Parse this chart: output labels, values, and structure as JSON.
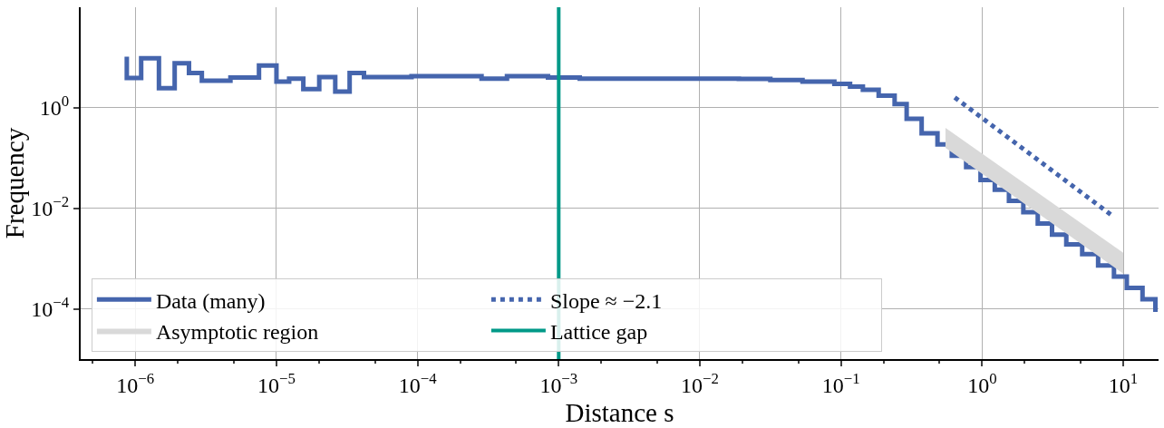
{
  "chart_data": {
    "type": "line",
    "xlabel": "Distance s",
    "ylabel": "Frequency",
    "log": "xy",
    "grid": true,
    "legend": "bottom left",
    "xlim": [
      4.1e-07,
      17.8
    ],
    "ylim": [
      1e-05,
      100
    ],
    "xticks": [
      {
        "value": 1e-06,
        "label": "10$^{−6}$"
      },
      {
        "value": 1e-05,
        "label": "10$^{−5}$"
      },
      {
        "value": 0.0001,
        "label": "10$^{−4}$"
      },
      {
        "value": 0.001,
        "label": "10$^{−3}$"
      },
      {
        "value": 0.01,
        "label": "10$^{−2}$"
      },
      {
        "value": 0.1,
        "label": "10$^{−1}$"
      },
      {
        "value": 1,
        "label": "10$^{0}$"
      },
      {
        "value": 10,
        "label": "10$^{1}$"
      }
    ],
    "yticks": [
      {
        "value": 0.0001,
        "label": "10$^{−4}$"
      },
      {
        "value": 0.01,
        "label": "10$^{−2}$"
      },
      {
        "value": 1,
        "label": "10$^{0}$"
      }
    ],
    "series": [
      {
        "name": "Data (many)",
        "type": "step",
        "color": "#4565ad",
        "x": [
          8.7e-07,
          8.7e-07,
          1.1e-06,
          1.47e-06,
          1.9e-06,
          2.4e-06,
          2.96e-06,
          4.72e-06,
          7.52e-06,
          1e-05,
          1.23e-05,
          1.55e-05,
          2.01e-05,
          2.61e-05,
          3.3e-05,
          4.17e-05,
          9.06e-05,
          0.000284,
          0.00043,
          0.00084,
          0.00141,
          0.0189,
          0.0316,
          0.0534,
          0.0898,
          0.116,
          0.143,
          0.185,
          0.24,
          0.292,
          0.373,
          0.483,
          0.61,
          0.771,
          0.975,
          1.23,
          1.55,
          1.96,
          2.48,
          3.13,
          3.95,
          5.12,
          6.64,
          8.6,
          10.6,
          13.7,
          16.9
        ],
        "values": [
          10.4,
          3.9,
          9.7,
          2.45,
          7.7,
          4.9,
          3.45,
          4.0,
          6.9,
          3.3,
          3.8,
          2.35,
          4.1,
          2.1,
          4.9,
          4.1,
          4.25,
          3.8,
          4.25,
          4.0,
          3.78,
          3.75,
          3.55,
          3.3,
          3.0,
          2.65,
          2.29,
          1.75,
          1.18,
          0.606,
          0.312,
          0.186,
          0.111,
          0.0662,
          0.0366,
          0.0235,
          0.0141,
          0.00838,
          0.005,
          0.00299,
          0.00192,
          0.00123,
          0.00073,
          0.00044,
          0.00026,
          0.000155,
          8.7e-05
        ]
      },
      {
        "name": "Slope ≈ −2.1",
        "line_style": "dotted",
        "color": "#4565ad",
        "x": [
          0.64,
          8.6
        ],
        "values": [
          1.6,
          0.0067
        ]
      },
      {
        "name": "Asymptotic region",
        "type": "area",
        "color": "#d9d9d9",
        "x": [
          0.55,
          10
        ],
        "values": [
          null,
          null
        ],
        "lower": [
          0.16,
          0.0005
        ],
        "upper": [
          0.4,
          0.0013
        ]
      }
    ],
    "ref_lines": [
      {
        "axis": "x",
        "value": 0.001,
        "label": "Lattice gap",
        "color": "#009988"
      }
    ]
  }
}
